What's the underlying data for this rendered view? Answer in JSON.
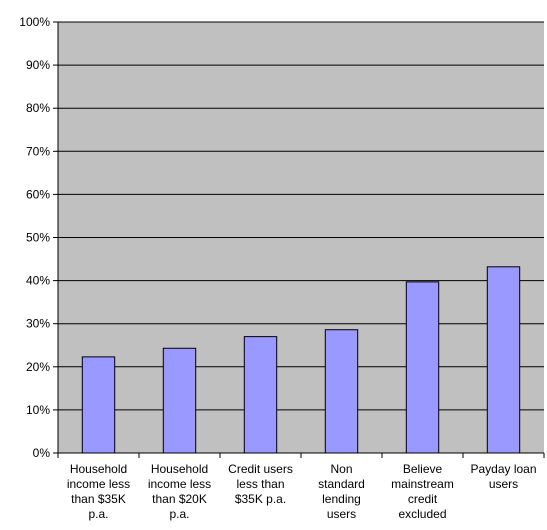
{
  "colors": {
    "plot_background": "#c0c0c0",
    "bar_fill": "#9999ff",
    "bar_stroke": "#000000",
    "gridline": "#000000",
    "axis": "#000000",
    "page_background": "#ffffff"
  },
  "chart_data": {
    "type": "bar",
    "title": "",
    "xlabel": "",
    "ylabel": "",
    "categories": [
      [
        "Household",
        "income less",
        "than $35K",
        "p.a."
      ],
      [
        "Household",
        "income less",
        "than $20K",
        "p.a."
      ],
      [
        "Credit users",
        "less than",
        "$35K p.a."
      ],
      [
        "Non",
        "standard",
        "lending",
        "users"
      ],
      [
        "Believe",
        "mainstream",
        "credit",
        "excluded"
      ],
      [
        "Payday loan",
        "users"
      ]
    ],
    "values": [
      22.3,
      24.3,
      27.0,
      28.6,
      39.7,
      43.2
    ],
    "ylim": [
      0,
      100
    ],
    "y_ticks": [
      {
        "value": 0,
        "label": "0%"
      },
      {
        "value": 10,
        "label": "10%"
      },
      {
        "value": 20,
        "label": "20%"
      },
      {
        "value": 30,
        "label": "30%"
      },
      {
        "value": 40,
        "label": "40%"
      },
      {
        "value": 50,
        "label": "50%"
      },
      {
        "value": 60,
        "label": "60%"
      },
      {
        "value": 70,
        "label": "70%"
      },
      {
        "value": 80,
        "label": "80%"
      },
      {
        "value": 90,
        "label": "90%"
      },
      {
        "value": 100,
        "label": "100%"
      }
    ],
    "grid": true,
    "legend": "none"
  }
}
